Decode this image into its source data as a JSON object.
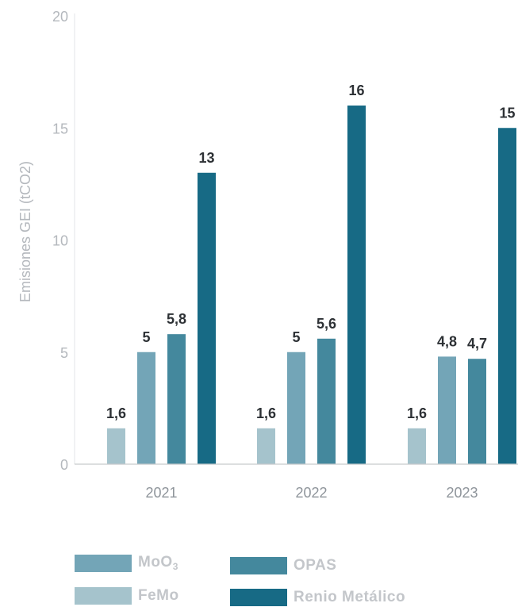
{
  "chart_data": {
    "type": "bar",
    "categories": [
      "2021",
      "2022",
      "2023"
    ],
    "series": [
      {
        "name": "FeMo",
        "color": "#a5c3cc",
        "values": [
          1.6,
          1.6,
          1.6
        ],
        "labels": [
          "1,6",
          "1,6",
          "1,6"
        ]
      },
      {
        "name": "MoO3",
        "color": "#73a5b7",
        "values": [
          5,
          5,
          4.8
        ],
        "labels": [
          "5",
          "5",
          "4,8"
        ]
      },
      {
        "name": "OPAS",
        "color": "#44889d",
        "values": [
          5.8,
          5.6,
          4.7
        ],
        "labels": [
          "5,8",
          "5,6",
          "4,7"
        ]
      },
      {
        "name": "Renio Metálico",
        "color": "#176a85",
        "values": [
          13,
          16,
          15
        ],
        "labels": [
          "13",
          "16",
          "15"
        ]
      }
    ],
    "ylabel": "Emisiones GEI (tCO2)",
    "ylim": [
      0,
      20
    ],
    "yticks": [
      0,
      5,
      10,
      15,
      20
    ],
    "legend_position": "bottom"
  },
  "legend": {
    "moo3": {
      "label": "MoO",
      "subscript": "3"
    },
    "opas": {
      "label": "OPAS"
    },
    "femo": {
      "label": "FeMo"
    },
    "renio": {
      "label": "Renio Metálico"
    }
  }
}
